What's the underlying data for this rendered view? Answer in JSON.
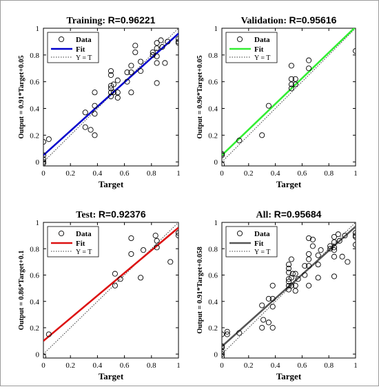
{
  "chart_data": [
    {
      "type": "scatter",
      "title": "Training:",
      "r_label": "R=0.96221",
      "xlabel": "Target",
      "ylabel": "Output = 0.91*Target+0.05",
      "xlim": [
        0,
        1
      ],
      "ylim": [
        -0.03,
        1
      ],
      "xticks": [
        "0",
        "0.2",
        "0.4",
        "0.6",
        "0.8",
        "1"
      ],
      "yticks": [
        "0",
        "0.2",
        "0.4",
        "0.6",
        "0.8",
        "1"
      ],
      "legend": [
        "Data",
        "Fit",
        "Y = T"
      ],
      "fit": {
        "slope": 0.91,
        "intercept": 0.05,
        "color": "#0000cc"
      },
      "points": [
        [
          0,
          0.15
        ],
        [
          0,
          0.05
        ],
        [
          0,
          0.02
        ],
        [
          0,
          0
        ],
        [
          0,
          -0.01
        ],
        [
          0.04,
          0.17
        ],
        [
          0.31,
          0.37
        ],
        [
          0.31,
          0.26
        ],
        [
          0.35,
          0.24
        ],
        [
          0.38,
          0.42
        ],
        [
          0.38,
          0.36
        ],
        [
          0.38,
          0.52
        ],
        [
          0.38,
          0.2
        ],
        [
          0.5,
          0.52
        ],
        [
          0.5,
          0.55
        ],
        [
          0.5,
          0.57
        ],
        [
          0.5,
          0.49
        ],
        [
          0.5,
          0.65
        ],
        [
          0.5,
          0.68
        ],
        [
          0.52,
          0.52
        ],
        [
          0.52,
          0.58
        ],
        [
          0.55,
          0.48
        ],
        [
          0.55,
          0.52
        ],
        [
          0.55,
          0.61
        ],
        [
          0.62,
          0.6
        ],
        [
          0.62,
          0.67
        ],
        [
          0.65,
          0.67
        ],
        [
          0.65,
          0.72
        ],
        [
          0.65,
          0.52
        ],
        [
          0.68,
          0.82
        ],
        [
          0.68,
          0.87
        ],
        [
          0.72,
          0.68
        ],
        [
          0.72,
          0.75
        ],
        [
          0.81,
          0.82
        ],
        [
          0.81,
          0.8
        ],
        [
          0.84,
          0.59
        ],
        [
          0.84,
          0.74
        ],
        [
          0.84,
          0.79
        ],
        [
          0.84,
          0.85
        ],
        [
          0.84,
          0.89
        ],
        [
          0.87,
          0.91
        ],
        [
          0.88,
          0.86
        ],
        [
          0.9,
          0.74
        ],
        [
          0.92,
          0.9
        ],
        [
          1,
          0.92
        ],
        [
          1,
          0.89
        ],
        [
          1,
          0.9
        ]
      ]
    },
    {
      "type": "scatter",
      "title": "Validation:",
      "r_label": "R=0.95616",
      "xlabel": "Target",
      "ylabel": "Output = 0.96*Target+0.05",
      "xlim": [
        0,
        1
      ],
      "ylim": [
        -0.03,
        1
      ],
      "xticks": [
        "0",
        "0.2",
        "0.4",
        "0.6",
        "0.8",
        "1"
      ],
      "yticks": [
        "0",
        "0.2",
        "0.4",
        "0.6",
        "0.8",
        "1"
      ],
      "legend": [
        "Data",
        "Fit",
        "Y = T"
      ],
      "fit": {
        "slope": 0.96,
        "intercept": 0.05,
        "color": "#33ee33"
      },
      "points": [
        [
          0,
          0.06
        ],
        [
          0,
          0.05
        ],
        [
          0,
          -0.02
        ],
        [
          0.13,
          0.16
        ],
        [
          0.3,
          0.2
        ],
        [
          0.35,
          0.42
        ],
        [
          0.52,
          0.72
        ],
        [
          0.52,
          0.62
        ],
        [
          0.52,
          0.58
        ],
        [
          0.52,
          0.55
        ],
        [
          0.55,
          0.58
        ],
        [
          0.55,
          0.62
        ],
        [
          0.65,
          0.76
        ],
        [
          0.65,
          0.7
        ],
        [
          1,
          0.83
        ]
      ]
    },
    {
      "type": "scatter",
      "title": "Test:",
      "r_label": "R=0.92376",
      "xlabel": "Target",
      "ylabel": "Output = 0.86*Target+0.1",
      "xlim": [
        0,
        1
      ],
      "ylim": [
        -0.03,
        1
      ],
      "xticks": [
        "0",
        "0.2",
        "0.4",
        "0.6",
        "0.8",
        "1"
      ],
      "yticks": [
        "0",
        "0.2",
        "0.4",
        "0.6",
        "0.8",
        "1"
      ],
      "legend": [
        "Data",
        "Fit",
        "Y = T"
      ],
      "fit": {
        "slope": 0.86,
        "intercept": 0.1,
        "color": "#dd1111"
      },
      "points": [
        [
          0,
          -0.02
        ],
        [
          0.04,
          0.15
        ],
        [
          0.53,
          0.61
        ],
        [
          0.53,
          0.52
        ],
        [
          0.57,
          0.57
        ],
        [
          0.65,
          0.76
        ],
        [
          0.65,
          0.88
        ],
        [
          0.72,
          0.58
        ],
        [
          0.74,
          0.79
        ],
        [
          0.83,
          0.9
        ],
        [
          0.84,
          0.86
        ],
        [
          0.84,
          0.81
        ],
        [
          0.94,
          0.7
        ],
        [
          1,
          0.9
        ],
        [
          1,
          0.92
        ]
      ]
    },
    {
      "type": "scatter",
      "title": "All:",
      "r_label": "R=0.95684",
      "xlabel": "Target",
      "ylabel": "Output = 0.91*Target+0.058",
      "xlim": [
        0,
        1
      ],
      "ylim": [
        -0.03,
        1
      ],
      "xticks": [
        "0",
        "0.2",
        "0.4",
        "0.6",
        "0.8",
        "1"
      ],
      "yticks": [
        "0",
        "0.2",
        "0.4",
        "0.6",
        "0.8",
        "1"
      ],
      "legend": [
        "Data",
        "Fit",
        "Y = T"
      ],
      "fit": {
        "slope": 0.91,
        "intercept": 0.058,
        "color": "#555555"
      },
      "points": [
        [
          0,
          0.15
        ],
        [
          0,
          0.06
        ],
        [
          0,
          0.05
        ],
        [
          0,
          0.02
        ],
        [
          0,
          0
        ],
        [
          0,
          -0.02
        ],
        [
          0.04,
          0.17
        ],
        [
          0.04,
          0.15
        ],
        [
          0.13,
          0.16
        ],
        [
          0.3,
          0.37
        ],
        [
          0.3,
          0.2
        ],
        [
          0.31,
          0.26
        ],
        [
          0.35,
          0.42
        ],
        [
          0.35,
          0.24
        ],
        [
          0.38,
          0.42
        ],
        [
          0.38,
          0.36
        ],
        [
          0.38,
          0.52
        ],
        [
          0.38,
          0.2
        ],
        [
          0.5,
          0.49
        ],
        [
          0.5,
          0.52
        ],
        [
          0.5,
          0.55
        ],
        [
          0.5,
          0.57
        ],
        [
          0.5,
          0.62
        ],
        [
          0.5,
          0.65
        ],
        [
          0.5,
          0.68
        ],
        [
          0.52,
          0.72
        ],
        [
          0.52,
          0.58
        ],
        [
          0.52,
          0.52
        ],
        [
          0.53,
          0.61
        ],
        [
          0.55,
          0.48
        ],
        [
          0.55,
          0.52
        ],
        [
          0.55,
          0.61
        ],
        [
          0.57,
          0.57
        ],
        [
          0.62,
          0.6
        ],
        [
          0.62,
          0.67
        ],
        [
          0.65,
          0.67
        ],
        [
          0.65,
          0.72
        ],
        [
          0.65,
          0.52
        ],
        [
          0.65,
          0.76
        ],
        [
          0.65,
          0.88
        ],
        [
          0.68,
          0.82
        ],
        [
          0.68,
          0.87
        ],
        [
          0.72,
          0.58
        ],
        [
          0.72,
          0.68
        ],
        [
          0.72,
          0.75
        ],
        [
          0.74,
          0.79
        ],
        [
          0.81,
          0.82
        ],
        [
          0.81,
          0.8
        ],
        [
          0.84,
          0.59
        ],
        [
          0.84,
          0.74
        ],
        [
          0.84,
          0.79
        ],
        [
          0.84,
          0.85
        ],
        [
          0.84,
          0.89
        ],
        [
          0.84,
          0.81
        ],
        [
          0.87,
          0.91
        ],
        [
          0.88,
          0.86
        ],
        [
          0.9,
          0.74
        ],
        [
          0.92,
          0.9
        ],
        [
          0.94,
          0.7
        ],
        [
          1,
          0.92
        ],
        [
          1,
          0.89
        ],
        [
          1,
          0.9
        ],
        [
          1,
          0.83
        ]
      ]
    }
  ]
}
